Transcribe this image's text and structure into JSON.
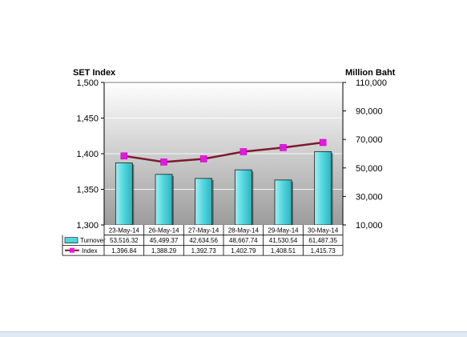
{
  "chart_data": {
    "type": "bar",
    "categories": [
      "23-May-14",
      "26-May-14",
      "27-May-14",
      "28-May-14",
      "29-May-14",
      "30-May-14"
    ],
    "left_axis_title": "SET Index",
    "right_axis_title": "Million Baht",
    "left_ticks": [
      "1,500",
      "1,450",
      "1,400",
      "1,350",
      "1,300"
    ],
    "right_ticks": [
      "110,000",
      "90,000",
      "70,000",
      "50,000",
      "30,000",
      "10,000"
    ],
    "left_ylim": [
      1300,
      1500
    ],
    "right_ylim": [
      10000,
      110000
    ],
    "series": [
      {
        "name": "Turnover",
        "kind": "bar",
        "axis": "right",
        "values": [
          53516.32,
          45499.37,
          42634.56,
          48667.74,
          41530.54,
          61487.35
        ],
        "labels": [
          "53,516.32",
          "45,499.37",
          "42,634.56",
          "48,667.74",
          "41,530.54",
          "61,487.35"
        ],
        "color": "#4fd6de"
      },
      {
        "name": "Index",
        "kind": "line",
        "axis": "left",
        "values": [
          1396.84,
          1388.29,
          1392.73,
          1402.79,
          1408.51,
          1415.73
        ],
        "labels": [
          "1,396.84",
          "1,388.29",
          "1,392.73",
          "1,402.79",
          "1,408.51",
          "1,415.73"
        ],
        "line_color": "#7b1c2c",
        "marker_color": "#e815e8"
      }
    ],
    "grid": true,
    "legend": "data-table-bottom"
  }
}
